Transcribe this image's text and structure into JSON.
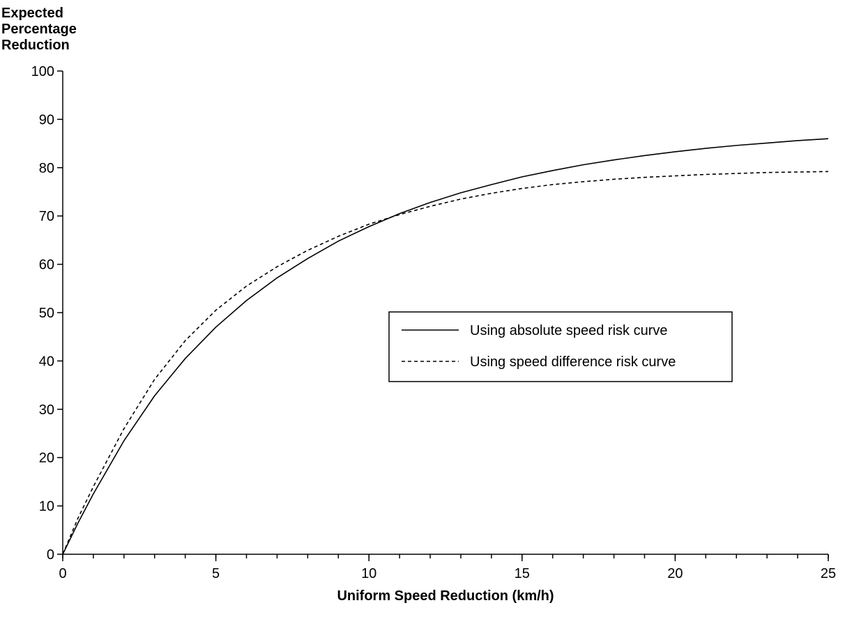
{
  "chart_data": {
    "type": "line",
    "title": "",
    "ylabel_lines": [
      "Expected",
      "Percentage",
      "Reduction"
    ],
    "xlabel": "Uniform Speed Reduction (km/h)",
    "xlim": [
      0,
      25
    ],
    "ylim": [
      0,
      100
    ],
    "x_ticks": [
      0,
      5,
      10,
      15,
      20,
      25
    ],
    "x_tick_labels": [
      "0",
      "5",
      "10",
      "15",
      "20",
      "25"
    ],
    "x_minor_step": 1,
    "y_ticks": [
      0,
      10,
      20,
      30,
      40,
      50,
      60,
      70,
      80,
      90,
      100
    ],
    "y_tick_labels": [
      "0",
      "10",
      "20",
      "30",
      "40",
      "50",
      "60",
      "70",
      "80",
      "90",
      "100"
    ],
    "grid": false,
    "legend_position": "center-right",
    "series": [
      {
        "name": "Using absolute speed risk curve",
        "style": "solid",
        "color": "#000000",
        "x": [
          0,
          0.5,
          1,
          2,
          3,
          4,
          5,
          6,
          7,
          8,
          9,
          10,
          11,
          12,
          13,
          14,
          15,
          16,
          17,
          18,
          19,
          20,
          21,
          22,
          23,
          24,
          25
        ],
        "y": [
          0,
          6.5,
          12.5,
          23.5,
          32.8,
          40.5,
          47.0,
          52.5,
          57.2,
          61.2,
          64.8,
          67.8,
          70.5,
          72.8,
          74.8,
          76.5,
          78.1,
          79.4,
          80.6,
          81.6,
          82.5,
          83.3,
          84.0,
          84.6,
          85.1,
          85.6,
          86.0
        ]
      },
      {
        "name": "Using speed difference risk curve",
        "style": "dashed",
        "color": "#000000",
        "x": [
          0,
          0.5,
          1,
          2,
          3,
          4,
          5,
          6,
          7,
          8,
          9,
          10,
          11,
          12,
          13,
          14,
          15,
          16,
          17,
          18,
          19,
          20,
          21,
          22,
          23,
          24,
          25
        ],
        "y": [
          0,
          7.5,
          14.0,
          26.0,
          36.2,
          44.2,
          50.5,
          55.5,
          59.5,
          62.9,
          65.8,
          68.3,
          70.3,
          72.0,
          73.5,
          74.7,
          75.7,
          76.5,
          77.1,
          77.6,
          78.0,
          78.3,
          78.6,
          78.8,
          79.0,
          79.1,
          79.2
        ]
      }
    ]
  }
}
